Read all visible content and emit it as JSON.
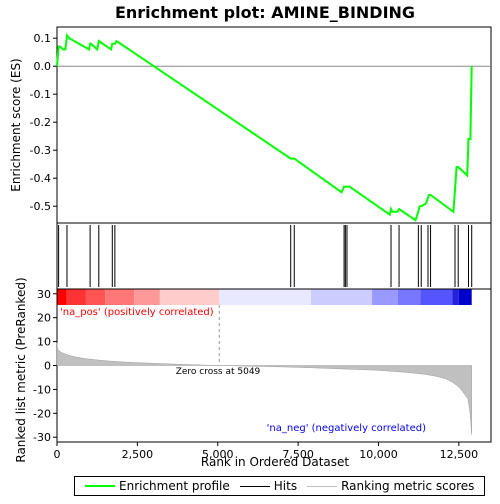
{
  "chart_data": {
    "type": "line",
    "title": "Enrichment plot: AMINE_BINDING",
    "es_panel": {
      "ylabel": "Enrichment score (ES)",
      "ylim": [
        -0.56,
        0.14
      ],
      "yticks": [
        0.1,
        0.0,
        -0.1,
        -0.2,
        -0.3,
        -0.4,
        -0.5
      ],
      "ytick_labels": [
        "0.1",
        "0.0",
        "-0.1",
        "-0.2",
        "-0.3",
        "-0.4",
        "-0.5"
      ],
      "series": [
        {
          "name": "Enrichment profile",
          "color": "#00ff00",
          "x": [
            0,
            50,
            100,
            180,
            260,
            310,
            380,
            1000,
            1030,
            1060,
            1250,
            1300,
            1680,
            1720,
            1800,
            1850,
            7270,
            7330,
            7380,
            8850,
            8930,
            8970,
            9020,
            9100,
            10350,
            10390,
            10430,
            10590,
            10640,
            11150,
            11240,
            11280,
            11330,
            11480,
            11540,
            11570,
            11620,
            12330,
            12380,
            12430,
            12480,
            12760,
            12800,
            12860,
            12900
          ],
          "y": [
            0.0,
            0.07,
            0.07,
            0.06,
            0.06,
            0.11,
            0.1,
            0.06,
            0.08,
            0.08,
            0.06,
            0.09,
            0.06,
            0.08,
            0.08,
            0.09,
            -0.33,
            -0.33,
            -0.33,
            -0.45,
            -0.43,
            -0.43,
            -0.43,
            -0.43,
            -0.53,
            -0.51,
            -0.52,
            -0.52,
            -0.51,
            -0.55,
            -0.52,
            -0.5,
            -0.5,
            -0.49,
            -0.47,
            -0.46,
            -0.46,
            -0.52,
            -0.44,
            -0.36,
            -0.36,
            -0.39,
            -0.26,
            -0.26,
            0.0
          ]
        }
      ]
    },
    "hits_panel": {
      "series_name": "Hits",
      "hit_positions": [
        50,
        310,
        1030,
        1300,
        1720,
        1800,
        7270,
        7380,
        8930,
        8970,
        9020,
        10390,
        10640,
        11240,
        11330,
        11540,
        11620,
        12380,
        12480,
        12800,
        12900
      ]
    },
    "gradient_bar": {
      "colors": [
        "#ff0000",
        "#ff3333",
        "#ff5555",
        "#ff7777",
        "#ff9999",
        "#ffcccc",
        "#e8e8ff",
        "#ccccff",
        "#9999ff",
        "#7777ff",
        "#5555ff",
        "#2222dd",
        "#0000cc"
      ],
      "breaks": [
        0,
        300,
        900,
        1500,
        2400,
        3200,
        5049,
        7900,
        9800,
        10600,
        11300,
        12300,
        12500,
        12900
      ]
    },
    "metric_panel": {
      "ylabel": "Ranked list metric (PreRanked)",
      "xlabel": "Rank in Ordered Dataset",
      "series_name": "Ranking metric scores",
      "ylim": [
        -32,
        32
      ],
      "yticks": [
        30,
        20,
        10,
        0,
        -10,
        -20,
        -30
      ],
      "ytick_labels": [
        "30",
        "20",
        "10",
        "0",
        "-10",
        "-20",
        "-30"
      ],
      "x": [
        0,
        20,
        60,
        150,
        300,
        500,
        800,
        1200,
        1700,
        2300,
        3000,
        3800,
        4500,
        5049,
        6000,
        7000,
        8000,
        9000,
        10000,
        10800,
        11400,
        11800,
        12100,
        12300,
        12500,
        12650,
        12780,
        12850,
        12900
      ],
      "y": [
        9.5,
        7.0,
        6.2,
        5.4,
        4.6,
        3.8,
        3.0,
        2.4,
        1.8,
        1.3,
        0.9,
        0.5,
        0.2,
        0.0,
        -0.3,
        -0.6,
        -1.0,
        -1.5,
        -2.0,
        -2.8,
        -3.6,
        -4.5,
        -5.6,
        -7.0,
        -9.0,
        -11.5,
        -14.0,
        -20.0,
        -29.0
      ],
      "pos_label": "'na_pos' (positively correlated)",
      "neg_label": "'na_neg' (negatively correlated)",
      "zero_cross_label": "Zero cross at 5049",
      "zero_cross": 5049
    },
    "xaxis": {
      "xlim": [
        0,
        13500
      ],
      "xticks": [
        0,
        2500,
        5000,
        7500,
        10000,
        12500
      ],
      "xtick_labels": [
        "0",
        "2,500",
        "5,000",
        "7,500",
        "10,000",
        "12,500"
      ]
    },
    "legend": {
      "items": [
        "Enrichment profile",
        "Hits",
        "Ranking metric scores"
      ],
      "colors": [
        "#00ff00",
        "#000000",
        "#c0c0c0"
      ]
    }
  }
}
